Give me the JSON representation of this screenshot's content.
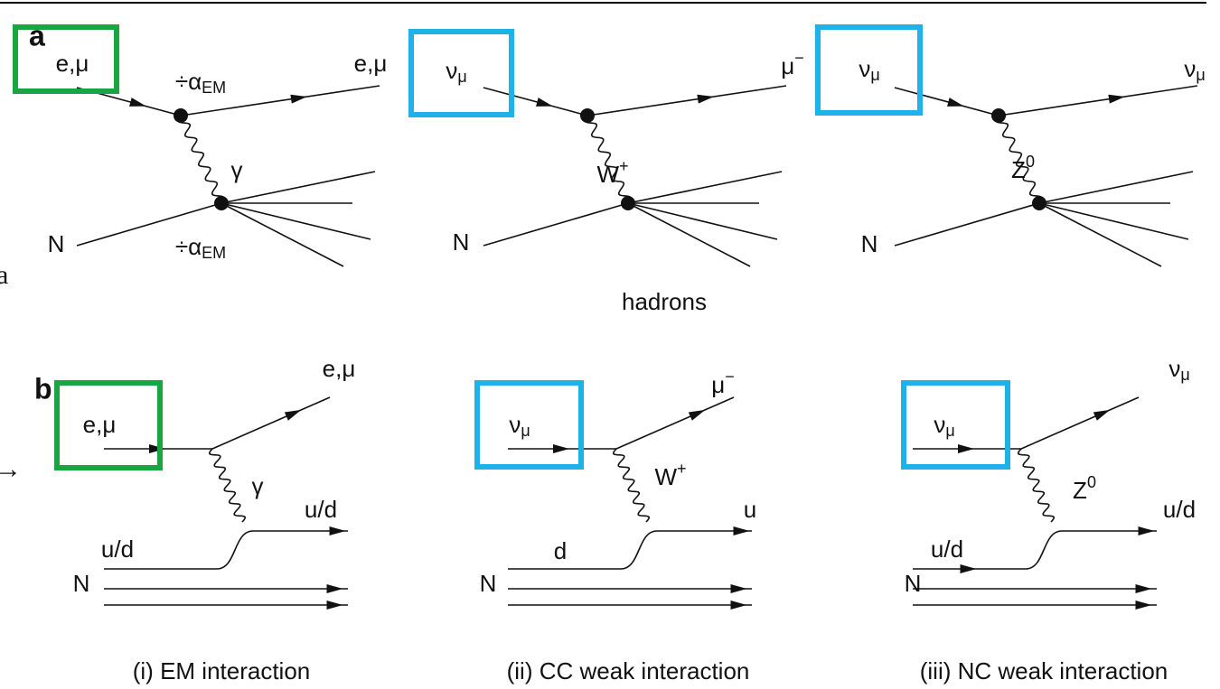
{
  "panel_a": {
    "letter": "a",
    "diagrams": [
      {
        "labels": [
          "e,μ",
          {
            "text": "÷α",
            "sub": "EM"
          },
          "e,μ",
          "γ",
          "N",
          {
            "text": "÷α",
            "sub": "EM"
          }
        ]
      },
      {
        "labels": [
          {
            "text": "ν",
            "sub": "μ"
          },
          {
            "text": "μ",
            "sup": "−"
          },
          {
            "text": "W",
            "sup": "+"
          },
          "N"
        ]
      },
      {
        "labels": [
          {
            "text": "ν",
            "sub": "μ"
          },
          {
            "text": "ν",
            "sub": "μ"
          },
          {
            "text": "Z",
            "sup": "0"
          },
          "N"
        ]
      }
    ],
    "note": "hadrons"
  },
  "panel_b": {
    "letter": "b",
    "diagrams": [
      {
        "labels": [
          "e,μ",
          "e,μ",
          "γ",
          "u/d",
          "u/d",
          "N"
        ],
        "caption": "(i) EM interaction"
      },
      {
        "labels": [
          {
            "text": "ν",
            "sub": "μ"
          },
          {
            "text": "μ",
            "sup": "−"
          },
          {
            "text": "W",
            "sup": "+"
          },
          "u",
          "d",
          "N"
        ],
        "caption": "(ii) CC weak interaction"
      },
      {
        "labels": [
          {
            "text": "ν",
            "sub": "μ"
          },
          {
            "text": "ν",
            "sub": "μ"
          },
          {
            "text": "Z",
            "sup": "0"
          },
          "u/d",
          "u/d",
          "N"
        ],
        "caption": "(iii) NC weak interaction"
      }
    ]
  },
  "edge_fragments": [
    "a",
    "→"
  ]
}
